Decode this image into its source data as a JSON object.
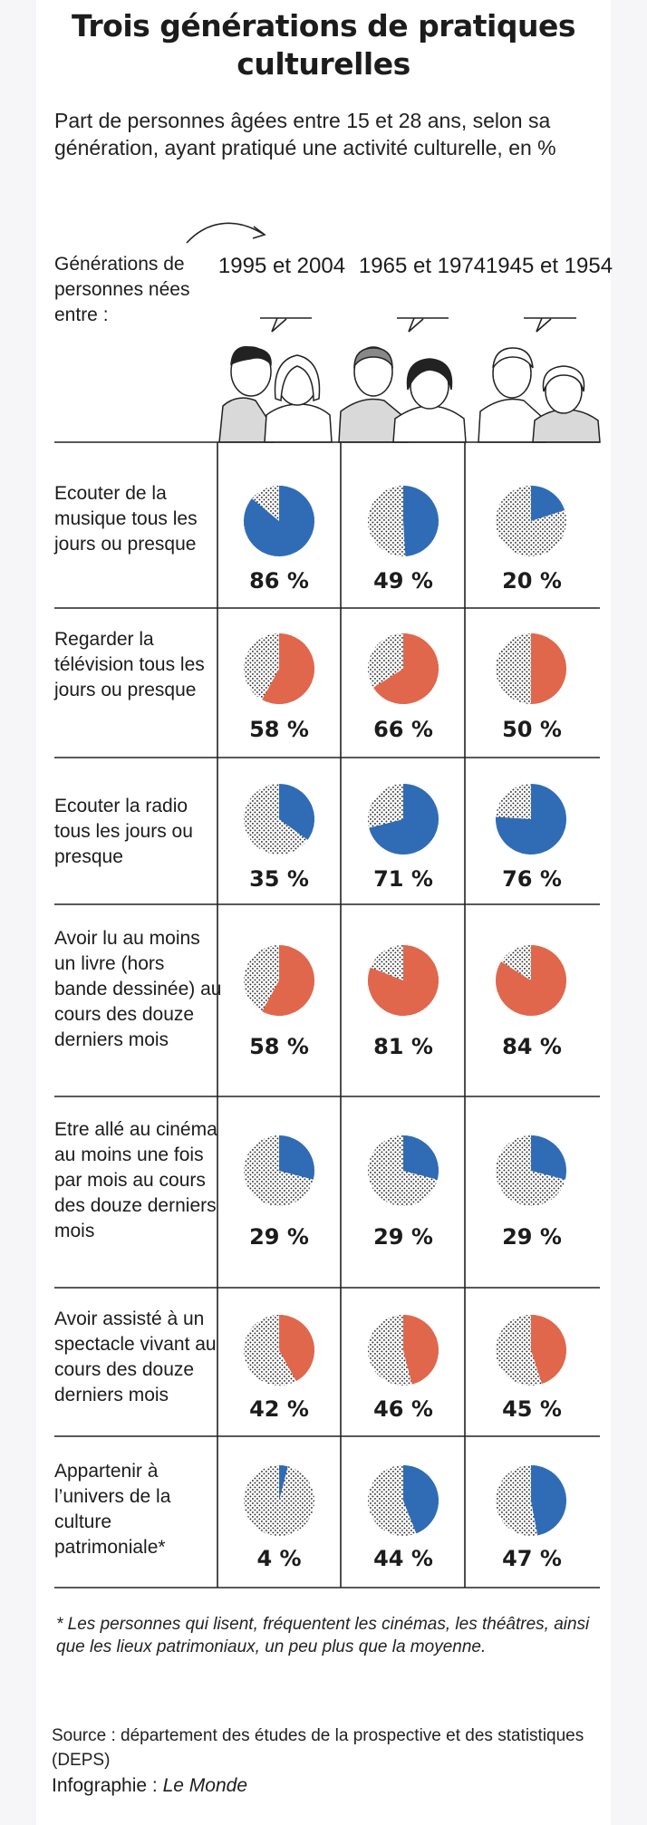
{
  "title": "Trois générations de pratiques culturelles",
  "subtitle": "Part de  personnes âgées entre 15 et 28 ans, selon sa génération, ayant pratiqué une activité culturelle, en %",
  "generation_label": "Générations de personnes nées entre :",
  "chart_data": {
    "type": "pie",
    "columns": [
      "1995 et 2004",
      "1965 et 1974",
      "1945 et 1954"
    ],
    "rows": [
      {
        "label": "Ecouter de la musique tous les jours ou presque",
        "color": "#2f6cb5",
        "values": [
          86,
          49,
          20
        ],
        "value_labels": [
          "86 %",
          "49 %",
          "20 %"
        ]
      },
      {
        "label": "Regarder la télévision tous les jours ou presque",
        "color": "#e0674c",
        "values": [
          58,
          66,
          50
        ],
        "value_labels": [
          "58 %",
          "66 %",
          "50 %"
        ]
      },
      {
        "label": "Ecouter la radio tous les jours ou presque",
        "color": "#2f6cb5",
        "values": [
          35,
          71,
          76
        ],
        "value_labels": [
          "35 %",
          "71 %",
          "76 %"
        ]
      },
      {
        "label": "Avoir lu au moins un livre (hors bande dessinée) au cours des douze derniers mois",
        "color": "#e0674c",
        "values": [
          58,
          81,
          84
        ],
        "value_labels": [
          "58 %",
          "81 %",
          "84 %"
        ]
      },
      {
        "label": "Etre allé au cinéma au moins une fois par mois au cours des douze derniers mois",
        "color": "#2f6cb5",
        "values": [
          29,
          29,
          29
        ],
        "value_labels": [
          "29 %",
          "29 %",
          "29 %"
        ]
      },
      {
        "label": "Avoir assisté à un spectacle vivant au cours des douze derniers mois",
        "color": "#e0674c",
        "values": [
          42,
          46,
          45
        ],
        "value_labels": [
          "42 %",
          "46 %",
          "45 %"
        ]
      },
      {
        "label": "Appartenir à l’univers de la culture patrimoniale*",
        "color": "#2f6cb5",
        "values": [
          4,
          44,
          47
        ],
        "value_labels": [
          "4 %",
          "44 %",
          "47 %"
        ]
      }
    ]
  },
  "footnote": "* Les personnes qui lisent, fréquentent les cinémas, les théâtres, ainsi que les lieux patrimoniaux, un peu plus que la moyenne.",
  "source": "Source : département des études de la prospective et des statistiques (DEPS)",
  "credit": {
    "label": "Infographie : ",
    "name": "Le Monde"
  }
}
